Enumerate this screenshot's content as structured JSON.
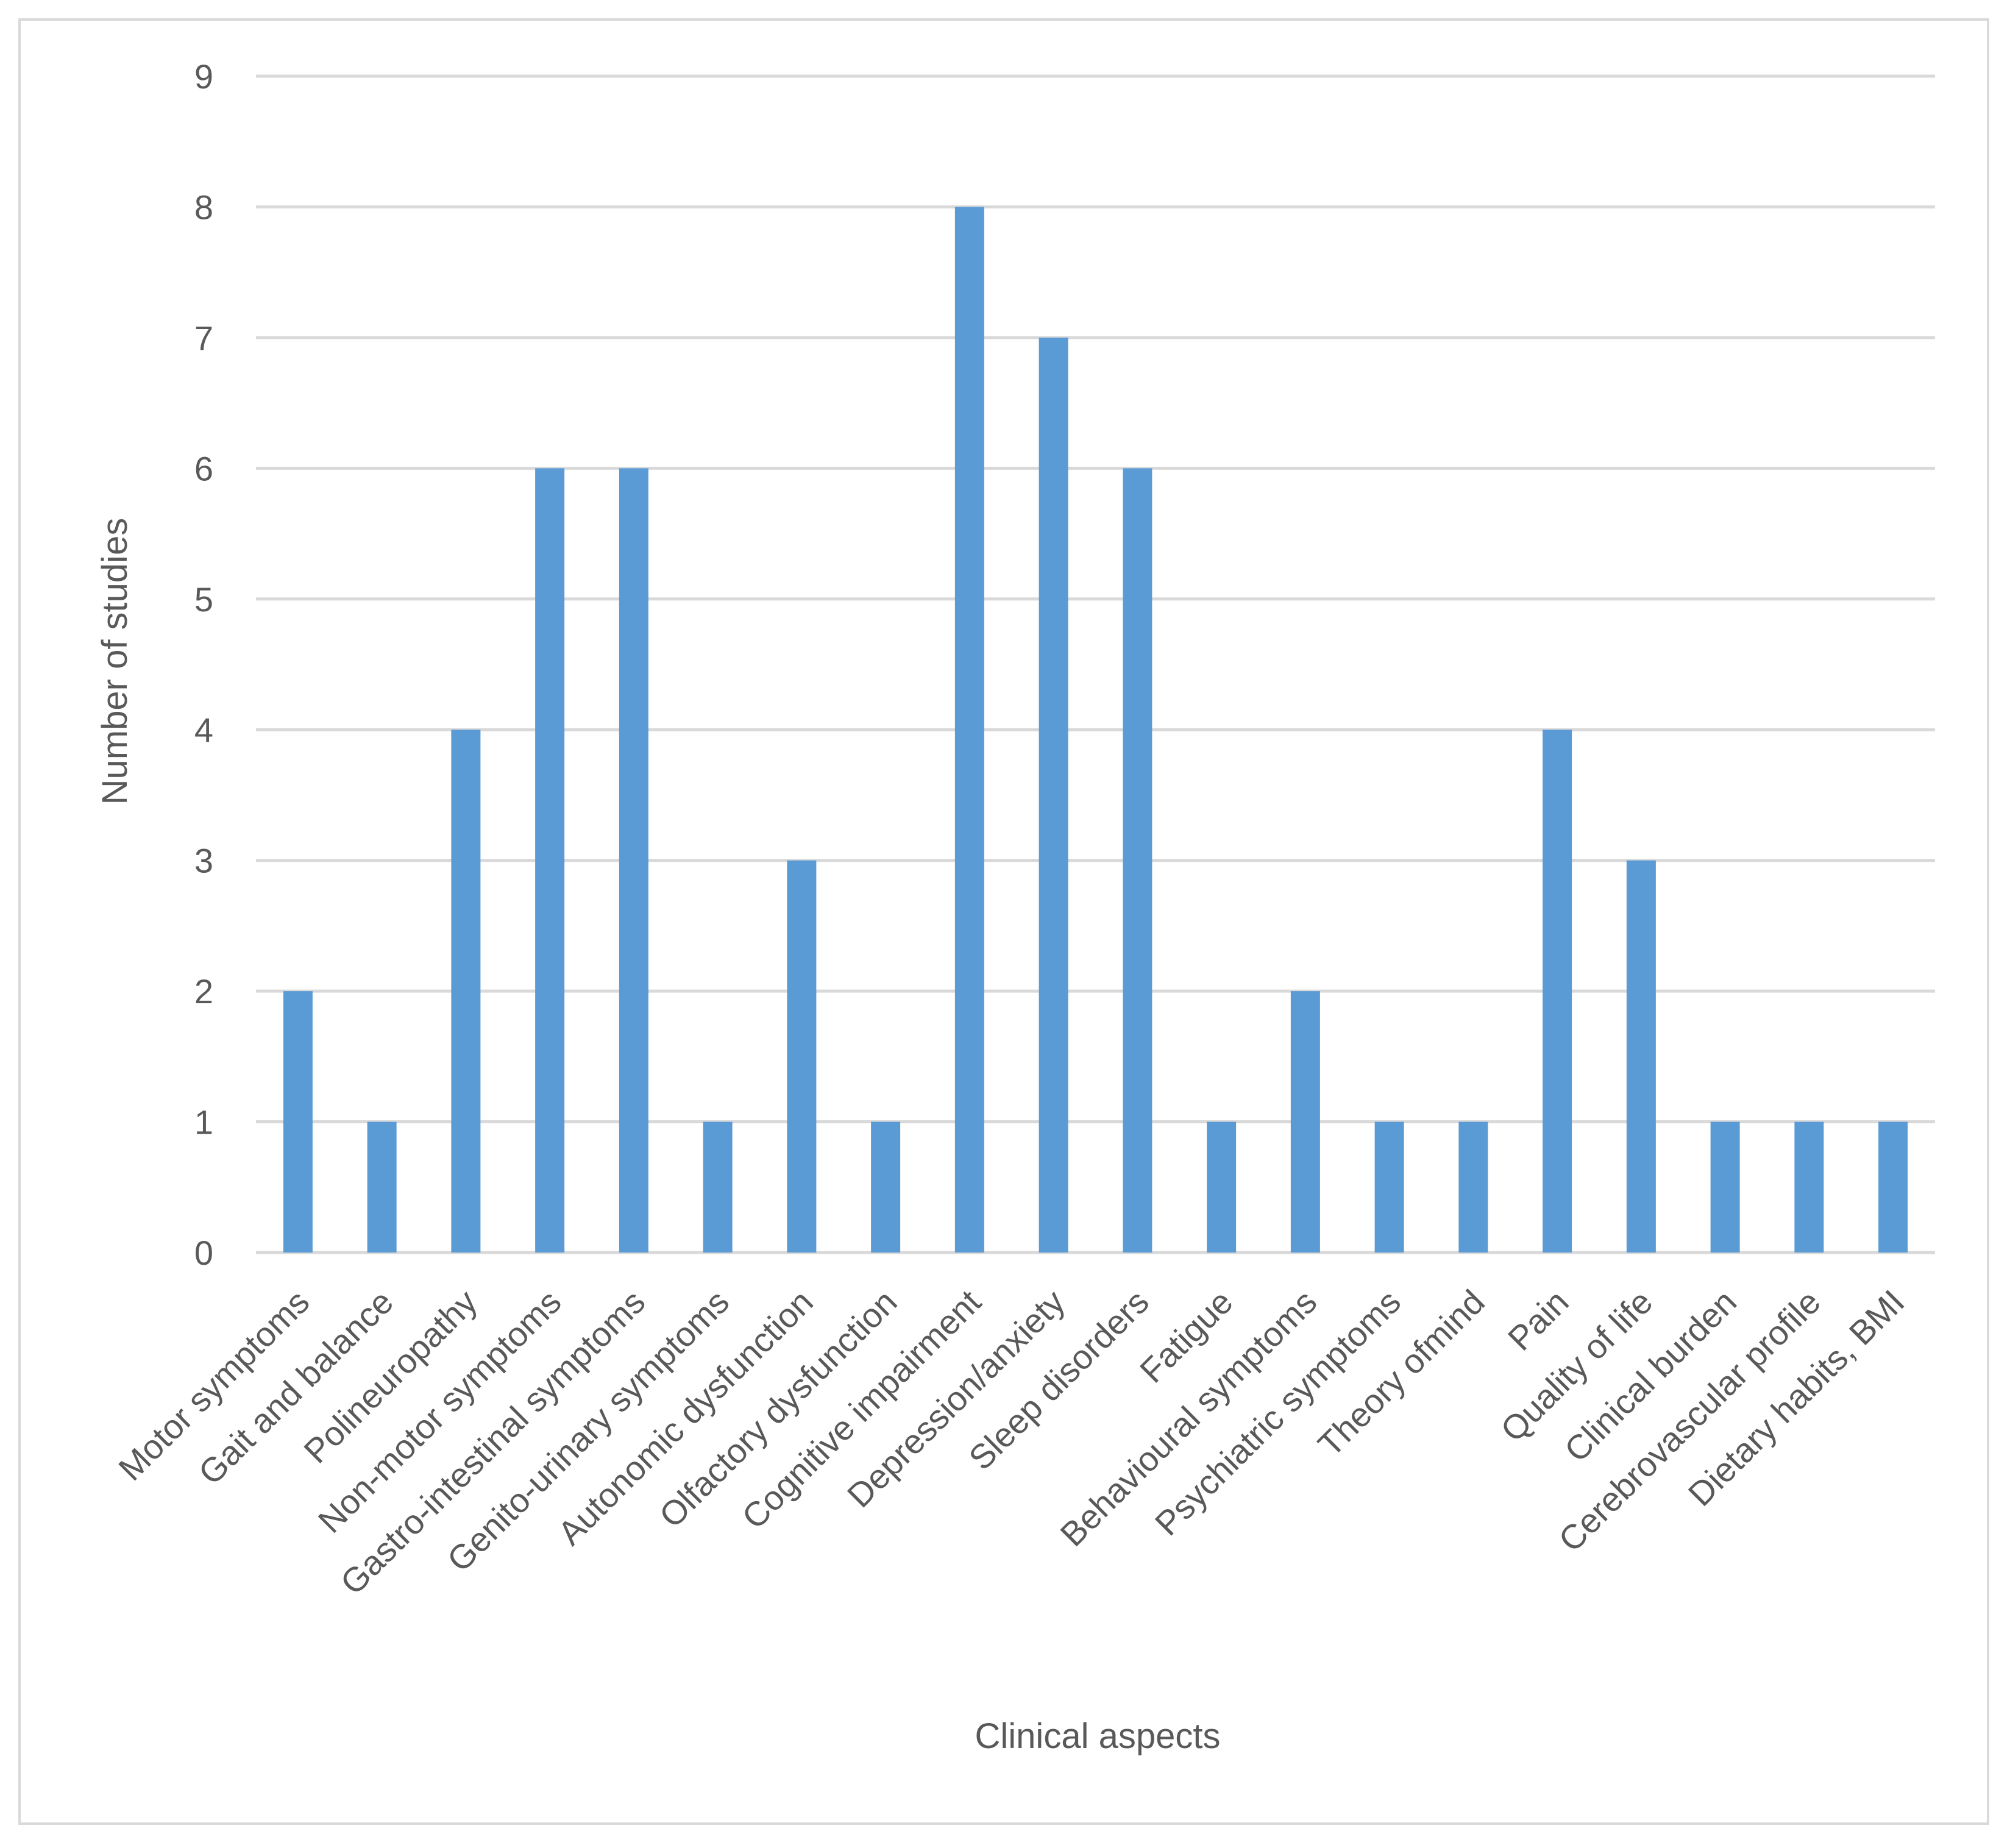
{
  "chart_data": {
    "type": "bar",
    "title": "",
    "xlabel": "Clinical aspects",
    "ylabel": "Number of studies",
    "ylim": [
      0,
      9
    ],
    "yticks": [
      0,
      1,
      2,
      3,
      4,
      5,
      6,
      7,
      8,
      9
    ],
    "grid": true,
    "legend": "none",
    "categories": [
      "Motor symptoms",
      "Gait and balance",
      "Polineuropathy",
      "Non-motor symptoms",
      "Gastro-intestinal symptoms",
      "Genito-urinary symptoms",
      "Autonomic dysfunction",
      "Olfactory dysfunction",
      "Cognitive impairment",
      "Depression/anxiety",
      "Sleep disorders",
      "Fatigue",
      "Behavioural symptoms",
      "Psychiatric symptoms",
      "Theory ofmind",
      "Pain",
      "Quality of life",
      "Clinical burden",
      "Cerebrovascular profile",
      "Dietary habits, BMI"
    ],
    "values": [
      2,
      1,
      4,
      6,
      6,
      1,
      3,
      1,
      8,
      7,
      6,
      1,
      2,
      1,
      1,
      4,
      3,
      1,
      1,
      1
    ],
    "colors": {
      "bar": "#5b9bd5",
      "grid": "#d9d9d9",
      "text": "#595959",
      "frame": "#d9d9d9"
    }
  }
}
